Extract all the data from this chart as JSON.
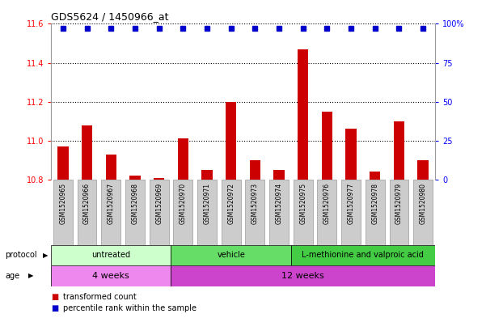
{
  "title": "GDS5624 / 1450966_at",
  "samples": [
    "GSM1520965",
    "GSM1520966",
    "GSM1520967",
    "GSM1520968",
    "GSM1520969",
    "GSM1520970",
    "GSM1520971",
    "GSM1520972",
    "GSM1520973",
    "GSM1520974",
    "GSM1520975",
    "GSM1520976",
    "GSM1520977",
    "GSM1520978",
    "GSM1520979",
    "GSM1520980"
  ],
  "transformed_count": [
    10.97,
    11.08,
    10.93,
    10.82,
    10.81,
    11.01,
    10.85,
    11.2,
    10.9,
    10.85,
    11.47,
    11.15,
    11.06,
    10.84,
    11.1,
    10.9
  ],
  "percentile_rank": [
    97,
    97,
    97,
    97,
    97,
    97,
    97,
    97,
    97,
    97,
    97,
    97,
    97,
    97,
    97,
    97
  ],
  "ylim_left": [
    10.8,
    11.6
  ],
  "ylim_right": [
    0,
    100
  ],
  "yticks_left": [
    10.8,
    11.0,
    11.2,
    11.4,
    11.6
  ],
  "yticks_right": [
    0,
    25,
    50,
    75,
    100
  ],
  "bar_color": "#cc0000",
  "dot_color": "#0000cc",
  "protocol_groups": [
    {
      "label": "untreated",
      "start": 0,
      "end": 5,
      "color": "#ccffcc"
    },
    {
      "label": "vehicle",
      "start": 5,
      "end": 10,
      "color": "#66dd66"
    },
    {
      "label": "L-methionine and valproic acid",
      "start": 10,
      "end": 16,
      "color": "#44cc44"
    }
  ],
  "age_groups": [
    {
      "label": "4 weeks",
      "start": 0,
      "end": 5,
      "color": "#ee88ee"
    },
    {
      "label": "12 weeks",
      "start": 5,
      "end": 16,
      "color": "#cc44cc"
    }
  ],
  "legend_bar_label": "transformed count",
  "legend_dot_label": "percentile rank within the sample",
  "xlabel_protocol": "protocol",
  "xlabel_age": "age",
  "sample_box_color": "#cccccc",
  "sample_box_edge": "#999999"
}
